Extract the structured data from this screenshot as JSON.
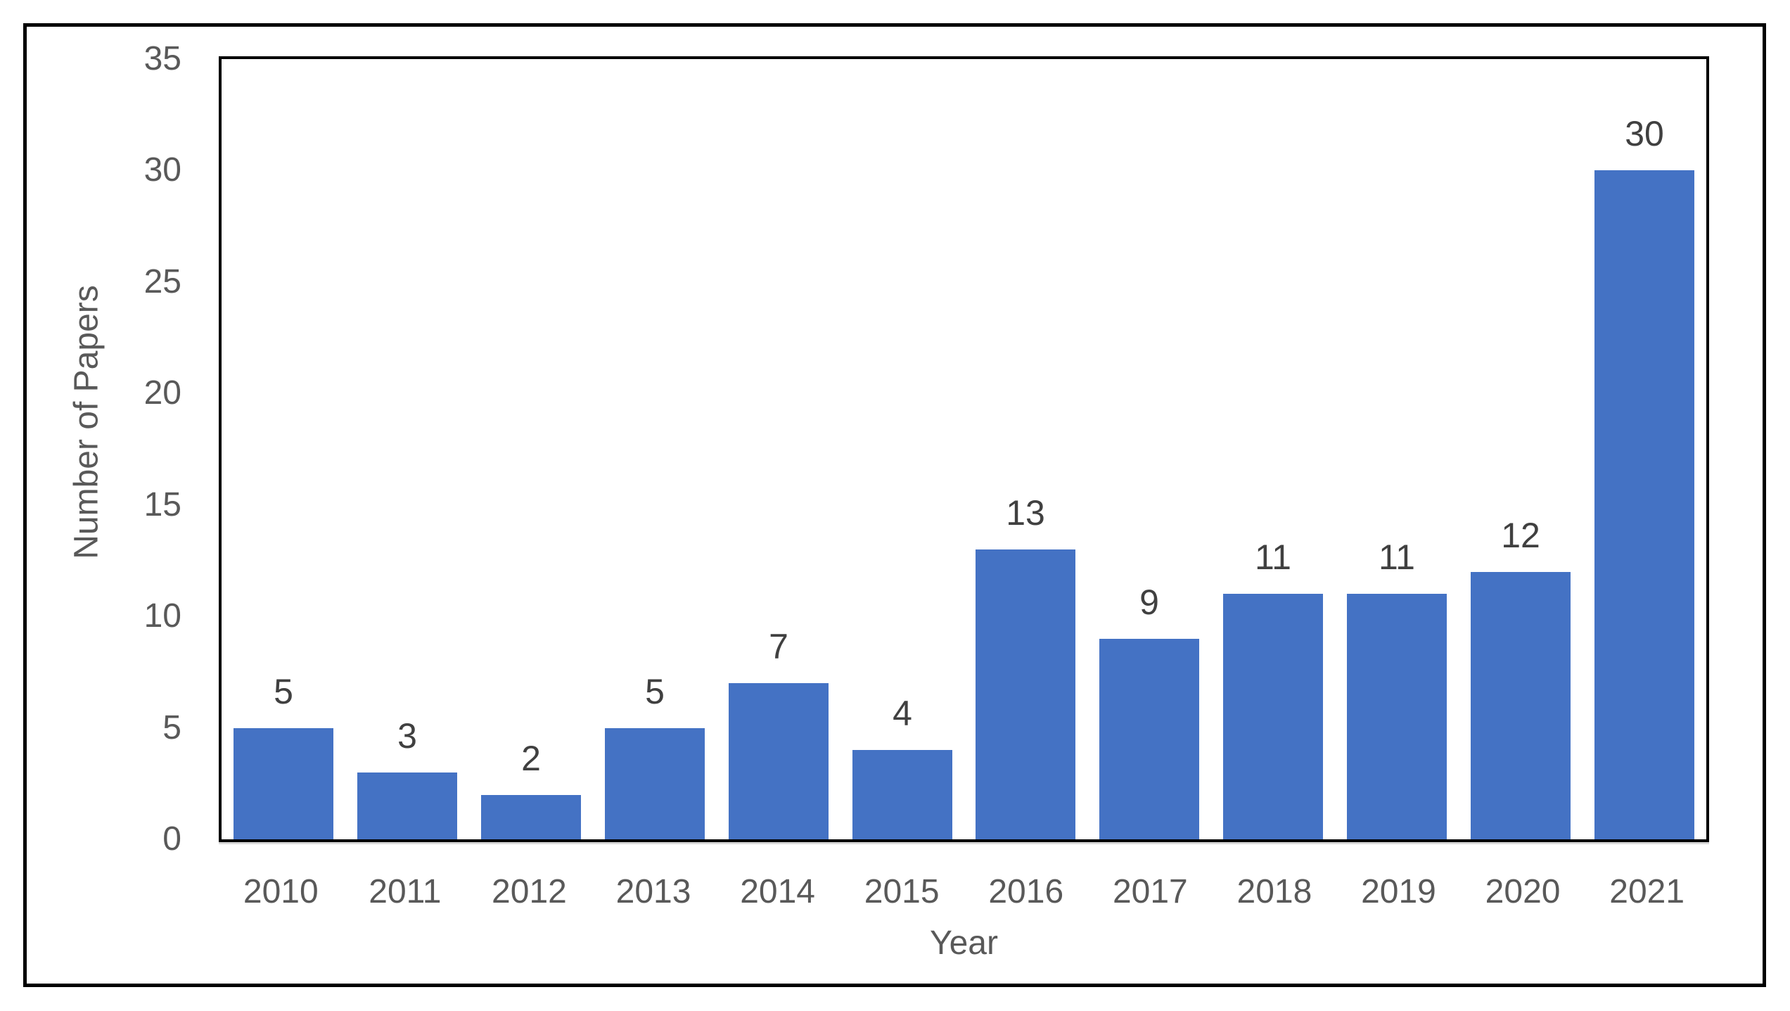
{
  "chart_data": {
    "type": "bar",
    "categories": [
      "2010",
      "2011",
      "2012",
      "2013",
      "2014",
      "2015",
      "2016",
      "2017",
      "2018",
      "2019",
      "2020",
      "2021"
    ],
    "values": [
      5,
      3,
      2,
      5,
      7,
      4,
      13,
      9,
      11,
      11,
      12,
      30
    ],
    "xlabel": "Year",
    "ylabel": "Number of Papers",
    "ylim": [
      0,
      35
    ],
    "yticks": [
      0,
      5,
      10,
      15,
      20,
      25,
      30,
      35
    ],
    "data_labels_visible": true,
    "grid": false,
    "legend": false,
    "bar_color": "#4472C4",
    "data_label_color": "#404040",
    "tick_label_color": "#595959",
    "axis_title_color": "#595959",
    "plot_border_color": "#000000",
    "frame_border_color": "#000000",
    "axis_underline_color": "#D9D9D9"
  }
}
